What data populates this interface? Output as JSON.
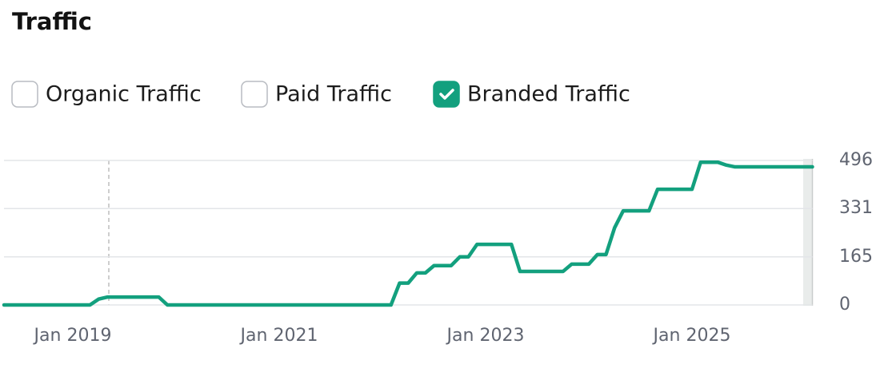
{
  "chart_data": {
    "type": "line",
    "title": "Traffic",
    "legend": [
      {
        "label": "Organic Traffic",
        "checked": false
      },
      {
        "label": "Paid Traffic",
        "checked": false
      },
      {
        "label": "Branded Traffic",
        "checked": true
      }
    ],
    "x": [
      "2018-05",
      "2018-06",
      "2018-07",
      "2018-08",
      "2018-09",
      "2018-10",
      "2018-11",
      "2018-12",
      "2019-01",
      "2019-02",
      "2019-03",
      "2019-04",
      "2019-05",
      "2019-06",
      "2019-07",
      "2019-08",
      "2019-09",
      "2019-10",
      "2019-11",
      "2019-12",
      "2020-01",
      "2020-02",
      "2020-03",
      "2020-04",
      "2020-05",
      "2020-06",
      "2020-07",
      "2020-08",
      "2020-09",
      "2020-10",
      "2020-11",
      "2020-12",
      "2021-01",
      "2021-02",
      "2021-03",
      "2021-04",
      "2021-05",
      "2021-06",
      "2021-07",
      "2021-08",
      "2021-09",
      "2021-10",
      "2021-11",
      "2021-12",
      "2022-01",
      "2022-02",
      "2022-03",
      "2022-04",
      "2022-05",
      "2022-06",
      "2022-07",
      "2022-08",
      "2022-09",
      "2022-10",
      "2022-11",
      "2022-12",
      "2023-01",
      "2023-02",
      "2023-03",
      "2023-04",
      "2023-05",
      "2023-06",
      "2023-07",
      "2023-08",
      "2023-09",
      "2023-10",
      "2023-11",
      "2023-12",
      "2024-01",
      "2024-02",
      "2024-03",
      "2024-04",
      "2024-05",
      "2024-06",
      "2024-07",
      "2024-08",
      "2024-09",
      "2024-10",
      "2024-11",
      "2024-12",
      "2025-01",
      "2025-02",
      "2025-03",
      "2025-04",
      "2025-05",
      "2025-06",
      "2025-07",
      "2025-08",
      "2025-09",
      "2025-10",
      "2025-11",
      "2025-12",
      "2026-01",
      "2026-02",
      "2026-03"
    ],
    "series": [
      {
        "color": "#13a07e",
        "legend_index": 2,
        "values": [
          0,
          0,
          0,
          0,
          0,
          0,
          0,
          0,
          0,
          0,
          0,
          20,
          27,
          27,
          27,
          27,
          27,
          27,
          27,
          0,
          0,
          0,
          0,
          0,
          0,
          0,
          0,
          0,
          0,
          0,
          0,
          0,
          0,
          0,
          0,
          0,
          0,
          0,
          0,
          0,
          0,
          0,
          0,
          0,
          0,
          0,
          75,
          75,
          110,
          110,
          135,
          135,
          135,
          165,
          165,
          208,
          208,
          208,
          208,
          208,
          115,
          115,
          115,
          115,
          115,
          115,
          140,
          140,
          140,
          173,
          173,
          265,
          323,
          323,
          323,
          323,
          397,
          397,
          397,
          397,
          397,
          490,
          490,
          490,
          480,
          474,
          474,
          474,
          474,
          474,
          474,
          474,
          474,
          474,
          474
        ]
      }
    ],
    "xticks": [
      {
        "value": "2019-01",
        "label": "Jan 2019"
      },
      {
        "value": "2021-01",
        "label": "Jan 2021"
      },
      {
        "value": "2023-01",
        "label": "Jan 2023"
      },
      {
        "value": "2025-01",
        "label": "Jan 2025"
      }
    ],
    "ylim": [
      0,
      496
    ],
    "yticks": [
      0,
      165,
      331,
      496
    ],
    "grid": true
  }
}
